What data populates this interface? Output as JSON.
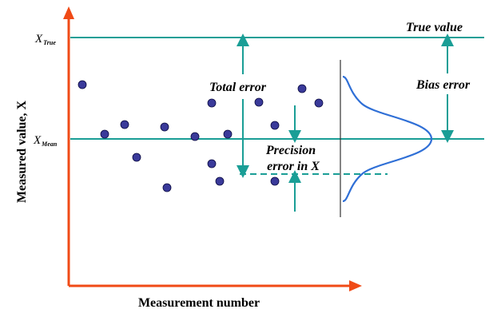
{
  "diagram": {
    "x_axis_label": "Measurement number",
    "y_axis_label": "Measured value, X",
    "x_true": {
      "symbol": "X",
      "subscript": "True"
    },
    "x_mean": {
      "symbol": "X",
      "subscript": "Mean"
    },
    "true_value_label": "True value",
    "total_error_label": "Total error",
    "bias_error_label": "Bias error",
    "precision_error_label_line1": "Precision",
    "precision_error_label_line2": "error in X",
    "colors": {
      "axis": "#f04a16",
      "reference_line": "#1a9e96",
      "point_fill": "#3a3a9a",
      "point_stroke": "#0a0a40",
      "distribution": "#2f6fd6",
      "divider": "#333333"
    },
    "icons": {
      "x_axis_arrow": "arrow-right",
      "y_axis_arrow": "arrow-up",
      "error_arrows": "double-headed-arrow"
    }
  }
}
